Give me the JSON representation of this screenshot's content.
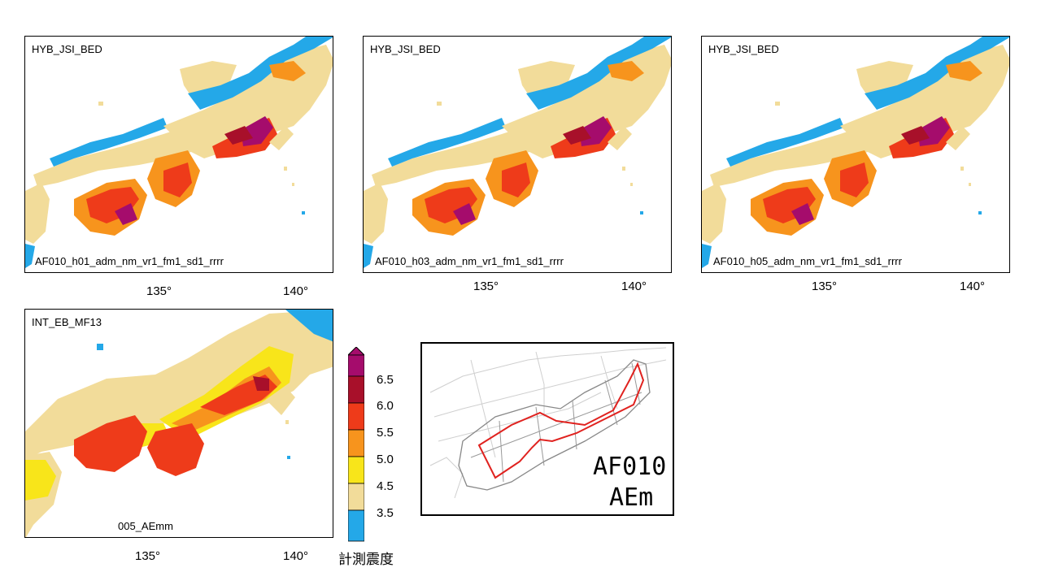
{
  "panels": [
    {
      "title": "HYB_JSI_BED",
      "case": "AF010_h01_adm_nm_vr1_fm1_sd1_rrrr"
    },
    {
      "title": "HYB_JSI_BED",
      "case": "AF010_h03_adm_nm_vr1_fm1_sd1_rrrr"
    },
    {
      "title": "HYB_JSI_BED",
      "case": "AF010_h05_adm_nm_vr1_fm1_sd1_rrrr"
    },
    {
      "title": "INT_EB_MF13",
      "case": "005_AEmm"
    }
  ],
  "axis": {
    "x_ticks": [
      "135°",
      "140°"
    ]
  },
  "colorbar": {
    "title": "計測震度",
    "labels": [
      "6.5",
      "6.0",
      "5.5",
      "5.0",
      "4.5",
      "3.5"
    ],
    "colors": [
      "#24a8e8",
      "#f2dc9a",
      "#f8e51a",
      "#f7941d",
      "#ee3b1a",
      "#a8102a",
      "#a50c6c"
    ]
  },
  "inset": {
    "line1": "AF010",
    "line2": "AEm"
  }
}
